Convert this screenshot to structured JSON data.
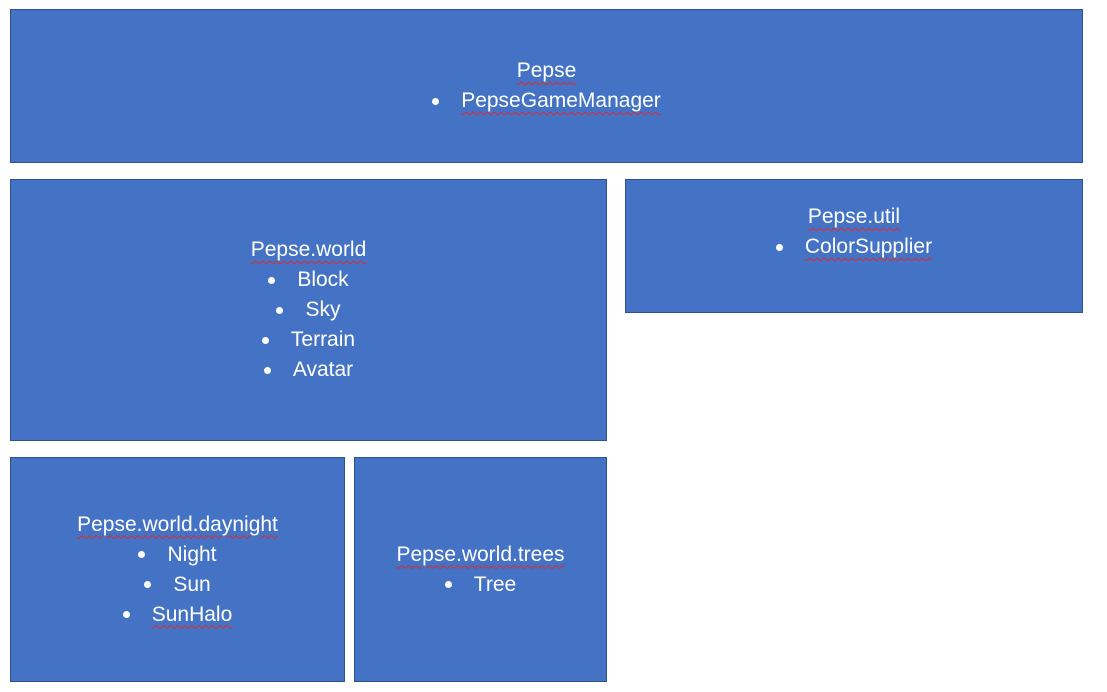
{
  "packages": {
    "pepse": {
      "title": "Pepse",
      "items": [
        "PepseGameManager"
      ]
    },
    "world": {
      "title": "Pepse.world",
      "items": [
        "Block",
        "Sky",
        "Terrain",
        "Avatar"
      ]
    },
    "util": {
      "title": "Pepse.util",
      "items": [
        "ColorSupplier"
      ]
    },
    "daynight": {
      "title": "Pepse.world.daynight",
      "items": [
        "Night",
        "Sun",
        "SunHalo"
      ]
    },
    "trees": {
      "title": "Pepse.world.trees",
      "items": [
        "Tree"
      ]
    }
  },
  "colors": {
    "box_fill": "#4472c4",
    "box_border": "#2f528f",
    "text": "#ffffff",
    "spellcheck_underline": "#e0292d"
  }
}
